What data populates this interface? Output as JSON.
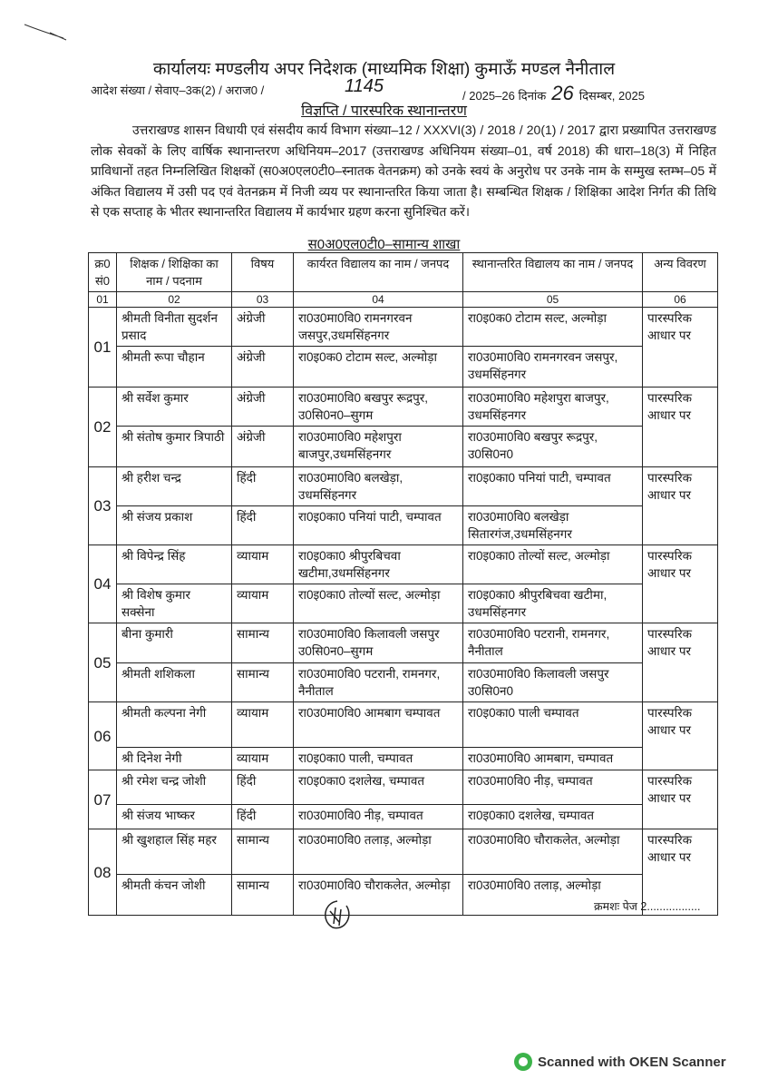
{
  "header": {
    "office": "कार्यालयः मण्डलीय अपर निदेशक (माध्यमिक शिक्षा) कुमाऊँ मण्डल नैनीताल",
    "order_prefix": "आदेश संख्या / सेवाए–3क(2) / अराज0 /",
    "order_number": "1145",
    "order_year": "/ 2025–26 दिनांक",
    "day": "26",
    "month_year": "दिसम्बर, 2025",
    "notice_title": "विज्ञप्ति / पारस्परिक स्थानान्तरण"
  },
  "body_text": "उत्तराखण्ड शासन विधायी एवं संसदीय कार्य विभाग संख्या–12 / XXXVI(3) / 2018 / 20(1) / 2017 द्वारा प्रख्यापित उत्तराखण्ड लोक सेवकों के लिए वार्षिक स्थानान्तरण अधिनियम–2017 (उत्तराखण्ड अधिनियम संख्या–01, वर्ष 2018) की धारा–18(3) में निहित प्राविधानों तहत निम्नलिखित शिक्षकों (स0अ0एल0टी0–स्नातक वेतनक्रम) को उनके स्वयं के अनुरोध पर उनके नाम के सम्मुख स्तम्भ–05 में अंकित विद्यालय में उसी पद एवं वेतनक्रम में निजी व्यय पर स्थानान्तरित किया जाता है। सम्बन्धित शिक्षक / शिक्षिका आदेश निर्गत की तिथि से एक सप्ताह के भीतर स्थानान्तरित विद्यालय में कार्यभार ग्रहण करना सुनिश्चित करें।",
  "section_title": "स0अ0एल0टी0–सामान्य शाखा",
  "table": {
    "headers": [
      "क्र0 सं0",
      "शिक्षक / शिक्षिका का नाम / पदनाम",
      "विषय",
      "कार्यरत विद्यालय का नाम / जनपद",
      "स्थानान्तरित विद्यालय का नाम / जनपद",
      "अन्य विवरण"
    ],
    "column_numbers": [
      "01",
      "02",
      "03",
      "04",
      "05",
      "06"
    ],
    "groups": [
      {
        "sn": "01",
        "other": "पारस्परिक आधार पर",
        "rows": [
          {
            "name": "श्रीमती विनीता सुदर्शन प्रसाद",
            "subject": "अंग्रेजी",
            "from": "रा0उ0मा0वि0 रामनगरवन जसपुर,उधमसिंहनगर",
            "to": "रा0इ0क0 टोटाम सल्ट, अल्मोड़ा"
          },
          {
            "name": "श्रीमती रूपा चौहान",
            "subject": "अंग्रेजी",
            "from": "रा0इ0क0 टोटाम सल्ट, अल्मोड़ा",
            "to": "रा0उ0मा0वि0 रामनगरवन जसपुर, उधमसिंहनगर"
          }
        ]
      },
      {
        "sn": "02",
        "other": "पारस्परिक आधार पर",
        "rows": [
          {
            "name": "श्री सर्वेश कुमार",
            "subject": "अंग्रेजी",
            "from": "रा0उ0मा0वि0 बखपुर रूद्रपुर, उ0सि0न0–सुगम",
            "to": "रा0उ0मा0वि0 महेशपुरा बाजपुर, उधमसिंहनगर"
          },
          {
            "name": "श्री संतोष कुमार त्रिपाठी",
            "subject": "अंग्रेजी",
            "from": "रा0उ0मा0वि0 महेशपुरा बाजपुर,उधमसिंहनगर",
            "to": "रा0उ0मा0वि0 बखपुर रूद्रपुर, उ0सि0न0"
          }
        ]
      },
      {
        "sn": "03",
        "other": "पारस्परिक आधार पर",
        "rows": [
          {
            "name": "श्री हरीश चन्द्र",
            "subject": "हिंदी",
            "from": "रा0उ0मा0वि0 बलखेड़ा, उधमसिंहनगर",
            "to": "रा0इ0का0 पनियां पाटी, चम्पावत"
          },
          {
            "name": "श्री संजय प्रकाश",
            "subject": "हिंदी",
            "from": "रा0इ0का0 पनियां पाटी, चम्पावत",
            "to": "रा0उ0मा0वि0 बलखेड़ा सितारगंज,उधमसिंहनगर"
          }
        ]
      },
      {
        "sn": "04",
        "other": "पारस्परिक आधार पर",
        "rows": [
          {
            "name": "श्री विपेन्द्र सिंह",
            "subject": "व्यायाम",
            "from": "रा0इ0का0 श्रीपुरबिचवा खटीमा,उधमसिंहनगर",
            "to": "रा0इ0का0 तोल्यों सल्ट, अल्मोड़ा"
          },
          {
            "name": "श्री विशेष कुमार सक्सेना",
            "subject": "व्यायाम",
            "from": "रा0इ0का0 तोल्यों सल्ट, अल्मोड़ा",
            "to": "रा0इ0का0 श्रीपुरबिचवा खटीमा, उधमसिंहनगर"
          }
        ]
      },
      {
        "sn": "05",
        "other": "पारस्परिक आधार पर",
        "rows": [
          {
            "name": "बीना कुमारी",
            "subject": "सामान्य",
            "from": "रा0उ0मा0वि0 किलावली जसपुर उ0सि0न0–सुगम",
            "to": "रा0उ0मा0वि0 पटरानी, रामनगर, नैनीताल"
          },
          {
            "name": "श्रीमती शशिकला",
            "subject": "सामान्य",
            "from": "रा0उ0मा0वि0 पटरानी, रामनगर, नैनीताल",
            "to": "रा0उ0मा0वि0 किलावली जसपुर उ0सि0न0"
          }
        ]
      },
      {
        "sn": "06",
        "other": "पारस्परिक आधार पर",
        "rows": [
          {
            "name": "श्रीमती कल्पना नेगी",
            "subject": "व्यायाम",
            "from": "रा0उ0मा0वि0 आमबाग चम्पावत",
            "to": "रा0इ0का0 पाली चम्पावत"
          },
          {
            "name": "श्री दिनेश नेगी",
            "subject": "व्यायाम",
            "from": "रा0इ0का0 पाली, चम्पावत",
            "to": "रा0उ0मा0वि0 आमबाग, चम्पावत"
          }
        ]
      },
      {
        "sn": "07",
        "other": "पारस्परिक आधार पर",
        "rows": [
          {
            "name": "श्री रमेश चन्द्र जोशी",
            "subject": "हिंदी",
            "from": "रा0इ0का0 दशलेख, चम्पावत",
            "to": "रा0उ0मा0वि0 नीड़, चम्पावत"
          },
          {
            "name": "श्री संजय भाष्कर",
            "subject": "हिंदी",
            "from": "रा0उ0मा0वि0 नीड़, चम्पावत",
            "to": "रा0इ0का0 दशलेख, चम्पावत"
          }
        ]
      },
      {
        "sn": "08",
        "other": "पारस्परिक आधार पर",
        "rows": [
          {
            "name": "श्री खुशहाल सिंह महर",
            "subject": "सामान्य",
            "from": "रा0उ0मा0वि0 तलाड़, अल्मोड़ा",
            "to": "रा0उ0मा0वि0 चौराकलेत, अल्मोड़ा"
          },
          {
            "name": "श्रीमती कंचन जोशी",
            "subject": "सामान्य",
            "from": "रा0उ0मा0वि0 चौराकलेत, अल्मोड़ा",
            "to": "रा0उ0मा0वि0 तलाड़, अल्मोड़ा"
          }
        ]
      }
    ]
  },
  "footer": {
    "continued": "क्रमशः पेज 2.................",
    "scanner_watermark": "Scanned with OKEN Scanner"
  }
}
